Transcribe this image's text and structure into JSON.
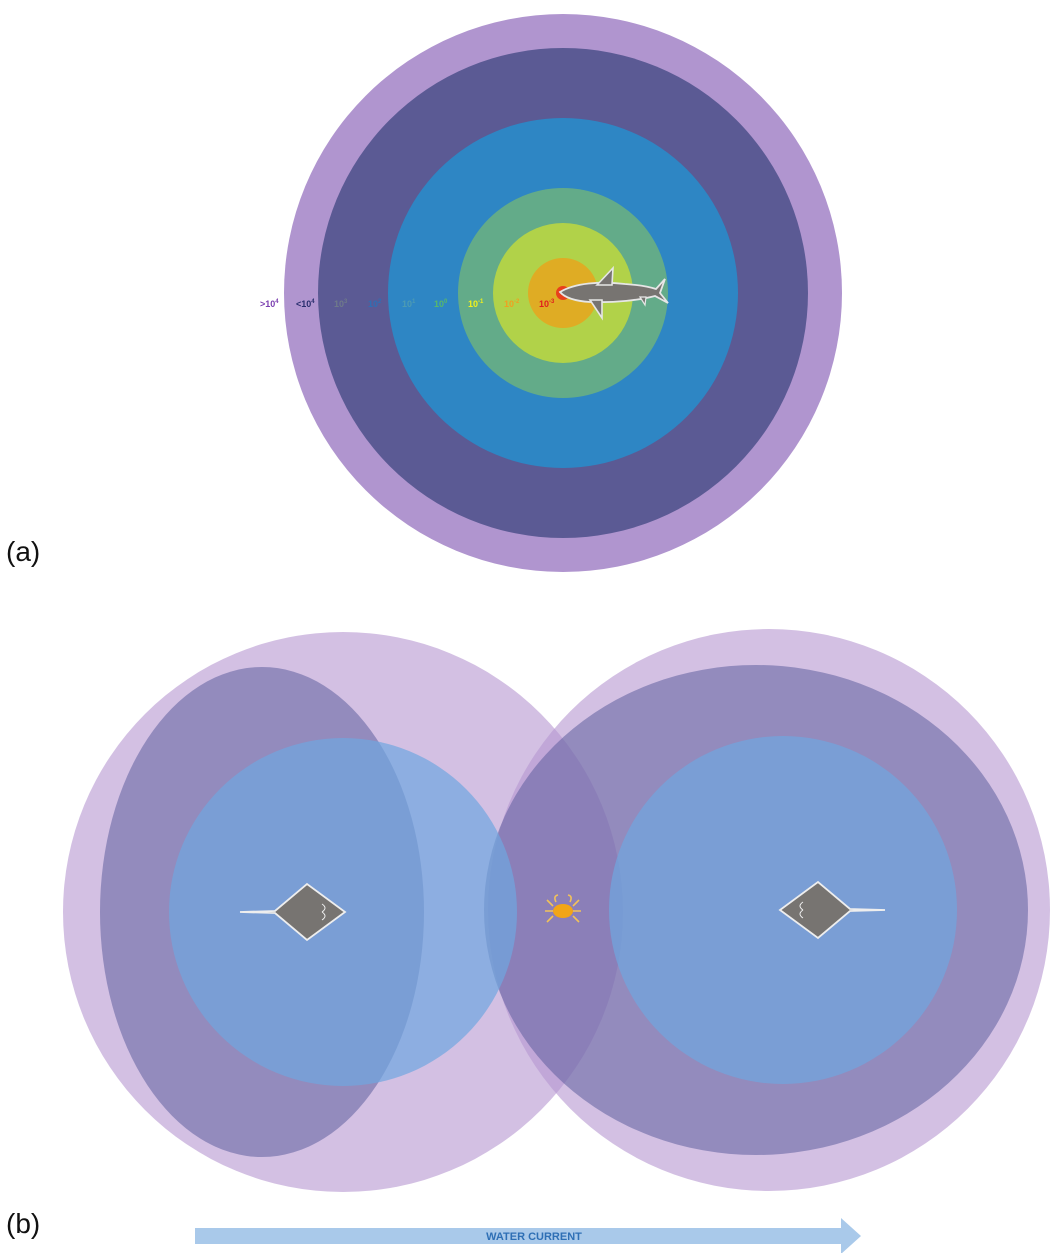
{
  "panel_a": {
    "label": "(a)",
    "ring_labels": [
      {
        "base": ">10",
        "exp": "4",
        "color": "#7b3fb0"
      },
      {
        "base": "<10",
        "exp": "4",
        "color": "#2a2f6e"
      },
      {
        "base": "10",
        "exp": "3",
        "color": "#6f7a8a"
      },
      {
        "base": "10",
        "exp": "2",
        "color": "#2e6fb5"
      },
      {
        "base": "10",
        "exp": "1",
        "color": "#4d9bb3"
      },
      {
        "base": "10",
        "exp": "0",
        "color": "#58b86a"
      },
      {
        "base": "10",
        "exp": "-1",
        "color": "#f2f21a"
      },
      {
        "base": "10",
        "exp": "-2",
        "color": "#f0a020"
      },
      {
        "base": "10",
        "exp": "-3",
        "color": "#e01e1e"
      }
    ],
    "rings": [
      {
        "name": "ring-gt-1e4",
        "color": "#b095cf"
      },
      {
        "name": "ring-lt-1e4",
        "color": "#5b5a94"
      },
      {
        "name": "ring-1e2",
        "color": "#2e86c4"
      },
      {
        "name": "ring-1e0",
        "color": "#63ab89"
      },
      {
        "name": "ring-1e-1",
        "color": "#b1d249"
      },
      {
        "name": "ring-1e-2",
        "color": "#dfac24"
      },
      {
        "name": "ring-1e-3",
        "color": "#e8401c"
      }
    ]
  },
  "panel_b": {
    "label": "(b)",
    "current_label": "WATER CURRENT",
    "colors": {
      "outer": "#b596d0",
      "middle": "#5e5e9e",
      "inner": "#6fa6e0",
      "arrow": "#a9c9ea",
      "animal": "#777471",
      "crab": "#f2a516"
    },
    "icons": [
      "stingray-left-icon",
      "crab-icon",
      "stingray-right-icon"
    ]
  }
}
